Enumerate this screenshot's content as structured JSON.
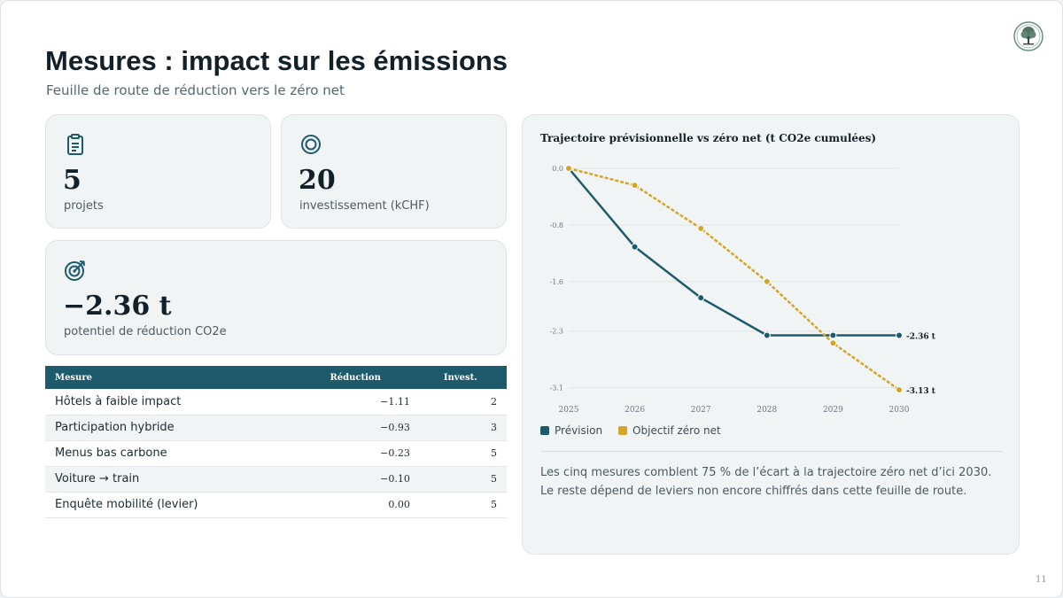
{
  "header": {
    "title": "Mesures : impact sur les émissions",
    "subtitle": "Feuille de route de réduction vers le zéro net"
  },
  "logo": {
    "icon": "tree-icon"
  },
  "kpis": [
    {
      "icon": "clipboard-icon",
      "value": "5",
      "label": "projets"
    },
    {
      "icon": "ring-icon",
      "value": "20",
      "label": "investissement (kCHF)"
    },
    {
      "icon": "target-icon",
      "value": "−2.36 t",
      "label": "potentiel de réduction CO2e"
    }
  ],
  "table": {
    "headers": [
      "Mesure",
      "Réduction",
      "Invest."
    ],
    "rows": [
      [
        "Hôtels à faible impact",
        "−1.11",
        "2"
      ],
      [
        "Participation hybride",
        "−0.93",
        "3"
      ],
      [
        "Menus bas carbone",
        "−0.23",
        "5"
      ],
      [
        "Voiture → train",
        "−0.10",
        "5"
      ],
      [
        "Enquête mobilité (levier)",
        "0.00",
        "5"
      ]
    ]
  },
  "chart_data": {
    "type": "line",
    "title": "Trajectoire prévisionnelle vs zéro net (t CO2e cumulées)",
    "x": [
      "2025",
      "2026",
      "2027",
      "2028",
      "2029",
      "2030"
    ],
    "yticks": [
      "0.0",
      "-0.8",
      "-1.6",
      "-2.3",
      "-3.1"
    ],
    "ylim": [
      -3.13,
      0
    ],
    "grid": true,
    "legend_position": "bottom-left",
    "series": [
      {
        "name": "Prévision",
        "color": "#1d5b6b",
        "values": [
          0,
          -1.11,
          -1.83,
          -2.36,
          -2.36,
          -2.36
        ],
        "end_label": "-2.36 t"
      },
      {
        "name": "Objectif zéro net",
        "color": "#d4a528",
        "values": [
          0,
          -0.24,
          -0.85,
          -1.6,
          -2.47,
          -3.13
        ],
        "end_label": "-3.13 t"
      }
    ]
  },
  "note": "Les cinq mesures comblent 75 % de l’écart à la trajectoire zéro net d’ici 2030. Le reste dépend de leviers non encore chiffrés dans cette feuille de route.",
  "page_number": "11",
  "colors": {
    "accent": "#1c5a6c",
    "gold": "#d4a528"
  }
}
